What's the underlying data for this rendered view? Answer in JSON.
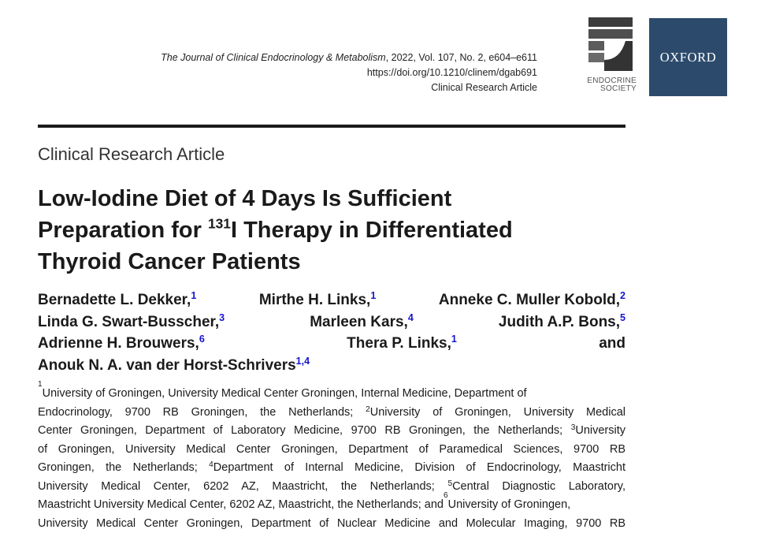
{
  "header": {
    "journal_name": "The Journal of Clinical Endocrinology & Metabolism",
    "citation": ", 2022, Vol. 107, No. 2, e604–e611",
    "doi": "https://doi.org/10.1210/clinem/dgab691",
    "article_type": "Clinical Research Article"
  },
  "logos": {
    "endocrine_society": [
      "ENDOCRINE",
      "SOCIETY"
    ],
    "oxford": "OXFORD",
    "oxford_color": "#2c4b6c",
    "aff_marker_color": "#1515d0"
  },
  "article": {
    "type_label": "Clinical Research Article",
    "title": {
      "line1": "Low-Iodine Diet of 4 Days Is Sufficient",
      "line2_pre": "Preparation for ",
      "line2_sup": "131",
      "line2_post": "I Therapy in Differentiated",
      "line3": "Thyroid Cancer Patients"
    }
  },
  "authors": {
    "lines": [
      [
        "Bernadette L. Dekker,",
        "1",
        "Mirthe H. Links,",
        "1",
        "Anneke C. Muller Kobold,",
        "2"
      ],
      [
        "Linda G. Swart-Busscher,",
        "3",
        "Marleen Kars,",
        "4",
        "Judith A.P. Bons,",
        "5"
      ],
      [
        "Adrienne H. Brouwers,",
        "6",
        "Thera P. Links,",
        "1",
        "and"
      ],
      [
        "Anouk N. A. van der Horst-Schrivers",
        "1,4"
      ]
    ]
  },
  "affiliations": {
    "lines": [
      [
        "",
        "1",
        "University of Groningen, University Medical Center Groningen, Internal Medicine, Department of"
      ],
      [
        "Endocrinology, 9700 RB Groningen, the Netherlands; ",
        "2",
        "University of Groningen, University Medical"
      ],
      [
        "Center Groningen, Department of Laboratory Medicine, 9700 RB Groningen, the Netherlands; ",
        "3",
        "University"
      ],
      [
        "of Groningen, University Medical Center Groningen, Department of Paramedical Sciences, 9700 RB"
      ],
      [
        "Groningen, the Netherlands; ",
        "4",
        "Department of Internal Medicine, Division of Endocrinology, Maastricht"
      ],
      [
        "University Medical Center, 6202 AZ, Maastricht, the Netherlands; ",
        "5",
        "Central Diagnostic Laboratory,"
      ],
      [
        "Maastricht University Medical Center, 6202 AZ, Maastricht, the Netherlands; and ",
        "6",
        "University of Groningen,"
      ],
      [
        "University Medical Center Groningen, Department of Nuclear Medicine and Molecular Imaging, 9700 RB"
      ]
    ]
  }
}
